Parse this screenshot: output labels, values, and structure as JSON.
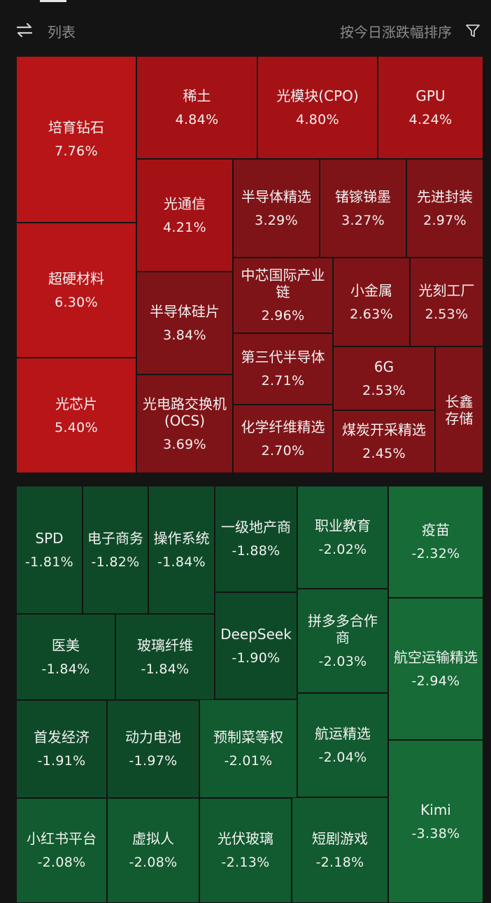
{
  "toolbar": {
    "list_label": "列表",
    "sort_label": "按今日涨跌幅排序",
    "swap_icon": "swap-arrows-icon",
    "filter_icon": "filter-icon"
  },
  "colors": {
    "up_strong": "#b81518",
    "up_medium": "#a51216",
    "up_weak": "#7f1418",
    "down_weak": "#0f4a28",
    "down_medium": "#125a2f",
    "down_strong": "#176b36",
    "background": "#141414"
  },
  "gainers": [
    {
      "name": "培育钻石",
      "change": "7.76%",
      "value": 7.76
    },
    {
      "name": "超硬材料",
      "change": "6.30%",
      "value": 6.3
    },
    {
      "name": "光芯片",
      "change": "5.40%",
      "value": 5.4
    },
    {
      "name": "稀土",
      "change": "4.84%",
      "value": 4.84
    },
    {
      "name": "光模块(CPO)",
      "change": "4.80%",
      "value": 4.8
    },
    {
      "name": "GPU",
      "change": "4.24%",
      "value": 4.24
    },
    {
      "name": "光通信",
      "change": "4.21%",
      "value": 4.21
    },
    {
      "name": "半导体硅片",
      "change": "3.84%",
      "value": 3.84
    },
    {
      "name": "光电路交换机(OCS)",
      "change": "3.69%",
      "value": 3.69
    },
    {
      "name": "半导体精选",
      "change": "3.29%",
      "value": 3.29
    },
    {
      "name": "锗镓锑墨",
      "change": "3.27%",
      "value": 3.27
    },
    {
      "name": "先进封装",
      "change": "2.97%",
      "value": 2.97
    },
    {
      "name": "中芯国际产业链",
      "change": "2.96%",
      "value": 2.96
    },
    {
      "name": "小金属",
      "change": "2.63%",
      "value": 2.63
    },
    {
      "name": "光刻工厂",
      "change": "2.53%",
      "value": 2.53
    },
    {
      "name": "第三代半导体",
      "change": "2.71%",
      "value": 2.71
    },
    {
      "name": "6G",
      "change": "2.53%",
      "value": 2.53
    },
    {
      "name": "长鑫存储",
      "change": "",
      "value": null
    },
    {
      "name": "化学纤维精选",
      "change": "2.70%",
      "value": 2.7
    },
    {
      "name": "煤炭开采精选",
      "change": "2.45%",
      "value": 2.45
    }
  ],
  "losers": [
    {
      "name": "SPD",
      "change": "-1.81%",
      "value": -1.81
    },
    {
      "name": "电子商务",
      "change": "-1.82%",
      "value": -1.82
    },
    {
      "name": "操作系统",
      "change": "-1.84%",
      "value": -1.84
    },
    {
      "name": "一级地产商",
      "change": "-1.88%",
      "value": -1.88
    },
    {
      "name": "职业教育",
      "change": "-2.02%",
      "value": -2.02
    },
    {
      "name": "疫苗",
      "change": "-2.32%",
      "value": -2.32
    },
    {
      "name": "医美",
      "change": "-1.84%",
      "value": -1.84
    },
    {
      "name": "玻璃纤维",
      "change": "-1.84%",
      "value": -1.84
    },
    {
      "name": "DeepSeek",
      "change": "-1.90%",
      "value": -1.9
    },
    {
      "name": "拼多多合作商",
      "change": "-2.03%",
      "value": -2.03
    },
    {
      "name": "航空运输精选",
      "change": "-2.94%",
      "value": -2.94
    },
    {
      "name": "首发经济",
      "change": "-1.91%",
      "value": -1.91
    },
    {
      "name": "动力电池",
      "change": "-1.97%",
      "value": -1.97
    },
    {
      "name": "预制菜等权",
      "change": "-2.01%",
      "value": -2.01
    },
    {
      "name": "航运精选",
      "change": "-2.04%",
      "value": -2.04
    },
    {
      "name": "Kimi",
      "change": "-3.38%",
      "value": -3.38
    },
    {
      "name": "小红书平台",
      "change": "-2.08%",
      "value": -2.08
    },
    {
      "name": "虚拟人",
      "change": "-2.08%",
      "value": -2.08
    },
    {
      "name": "光伏玻璃",
      "change": "-2.13%",
      "value": -2.13
    },
    {
      "name": "短剧游戏",
      "change": "-2.18%",
      "value": -2.18
    }
  ]
}
